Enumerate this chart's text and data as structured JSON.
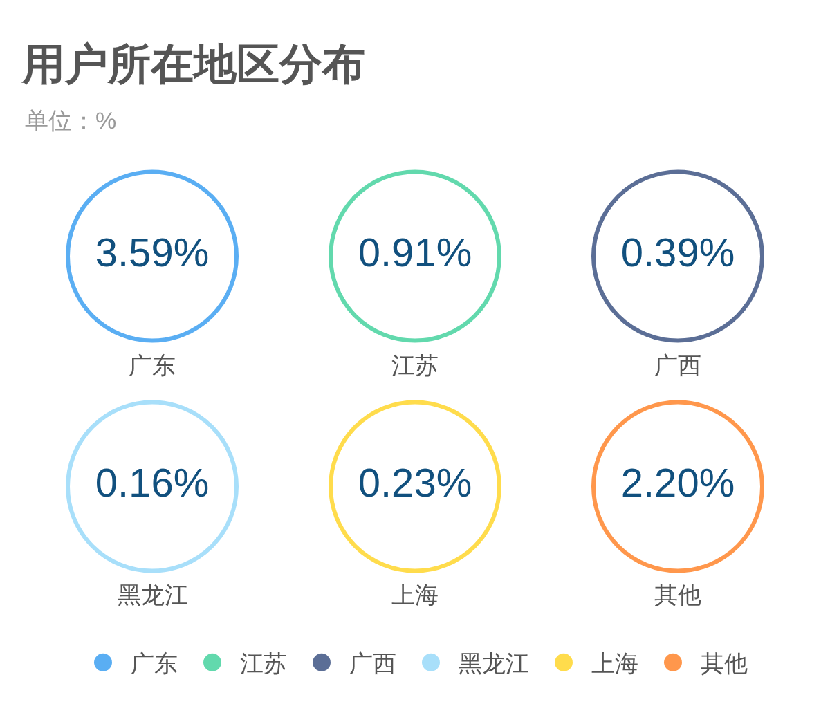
{
  "chart_data": {
    "type": "other",
    "title": "用户所在地区分布",
    "subtitle": "单位：%",
    "series": [
      {
        "name": "广东",
        "color": "#5aaef3",
        "values": [
          3.59
        ],
        "value_labels": [
          "3.59%"
        ]
      },
      {
        "name": "江苏",
        "color": "#62d9ad",
        "values": [
          0.91
        ],
        "value_labels": [
          "0.91%"
        ]
      },
      {
        "name": "广西",
        "color": "#5b6e96",
        "values": [
          0.39
        ],
        "value_labels": [
          "0.39%"
        ]
      },
      {
        "name": "黑龙江",
        "color": "#a8dffa",
        "values": [
          0.16
        ],
        "value_labels": [
          "0.16%"
        ]
      },
      {
        "name": "上海",
        "color": "#ffdc4c",
        "values": [
          0.23
        ],
        "value_labels": [
          "0.23%"
        ]
      },
      {
        "name": "其他",
        "color": "#ff974c",
        "values": [
          2.2
        ],
        "value_labels": [
          "2.20%"
        ]
      }
    ],
    "legend": "bottom"
  }
}
